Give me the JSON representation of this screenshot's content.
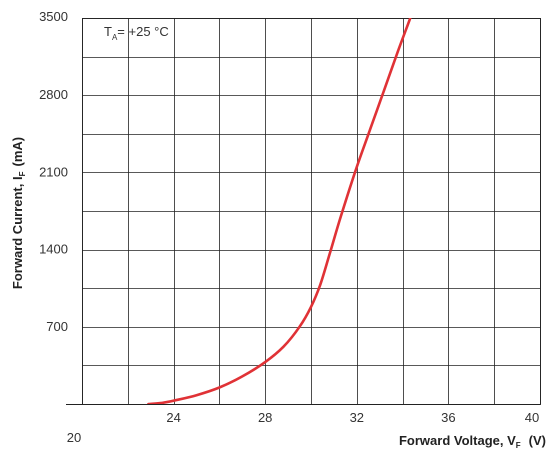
{
  "chart_data": {
    "type": "line",
    "title": "",
    "annotation": {
      "main": "T",
      "sub": "A",
      "rest": "= +25 °C"
    },
    "xlabel": {
      "main": "Forward Voltage, V",
      "sub": "F",
      "unit": "(V)"
    },
    "ylabel": {
      "main": "Forward Current,  I",
      "sub": "F",
      "unit": "(mA)"
    },
    "xlim": [
      20,
      40
    ],
    "ylim": [
      0,
      3500
    ],
    "x_ticks": [
      "20",
      "24",
      "28",
      "32",
      "36",
      "40"
    ],
    "y_ticks": [
      "700",
      "1400",
      "2100",
      "2800",
      "3500"
    ],
    "grid": true,
    "colors": {
      "line": "#e03236",
      "grid": "#222222"
    },
    "series": [
      {
        "x": [
          22.9,
          23.5,
          24.0,
          25.0,
          26.0,
          27.0,
          28.0,
          28.8,
          29.5,
          30.0,
          30.4,
          30.8,
          31.3,
          32.0,
          32.6,
          33.2,
          33.8,
          34.3,
          34.5
        ],
        "y": [
          0,
          10,
          30,
          80,
          150,
          250,
          380,
          520,
          700,
          880,
          1080,
          1350,
          1700,
          2150,
          2500,
          2850,
          3200,
          3480,
          3600
        ]
      }
    ]
  }
}
